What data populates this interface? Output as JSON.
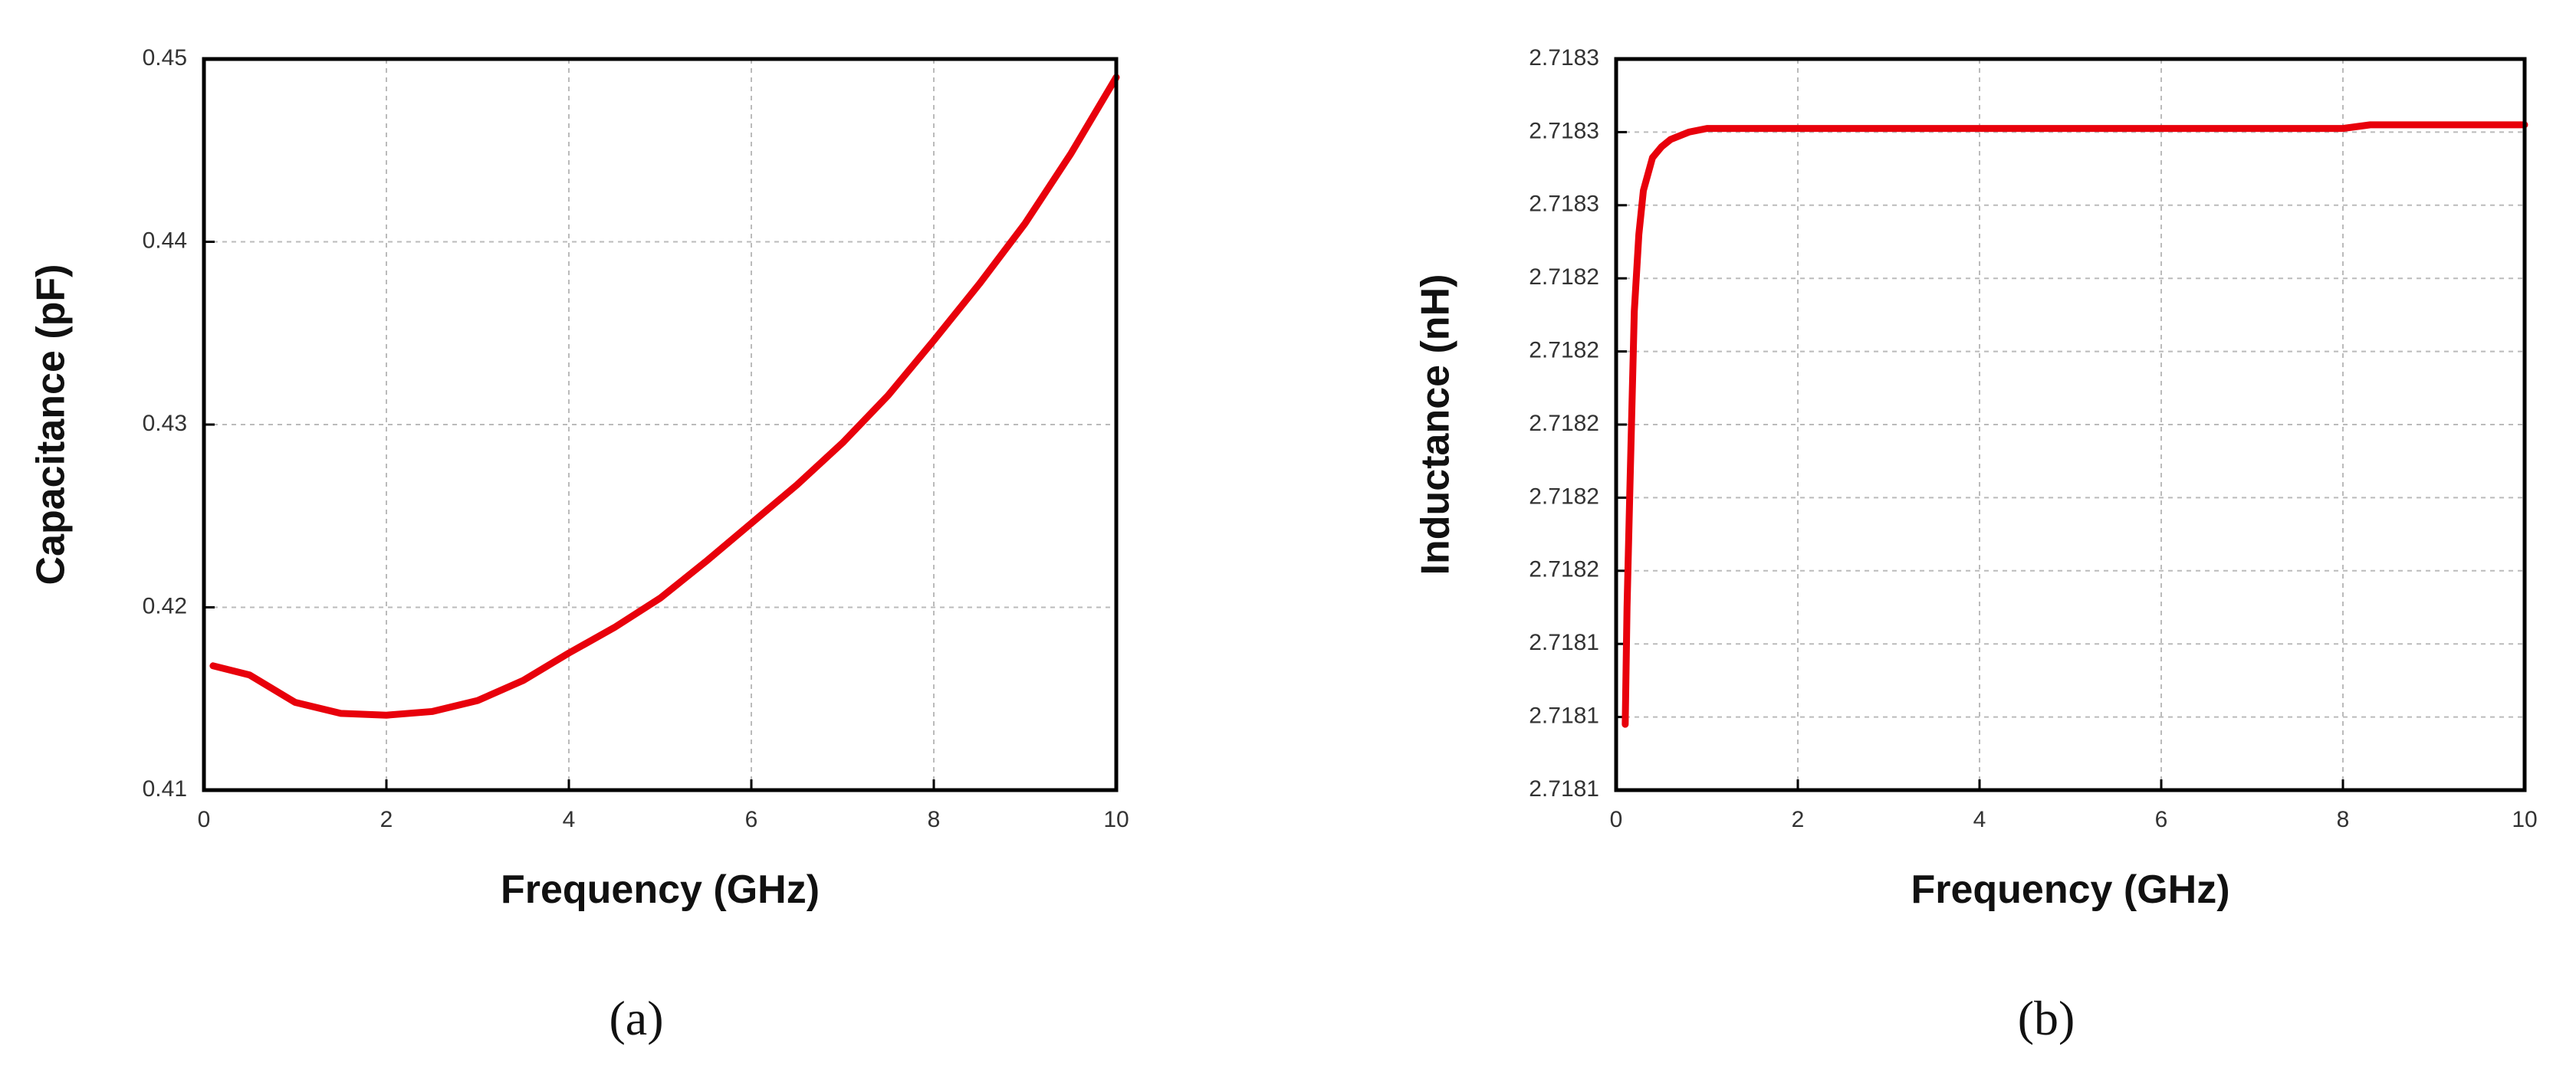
{
  "chart_data": [
    {
      "type": "line",
      "caption": "(a)",
      "xlabel": "Frequency (GHz)",
      "ylabel": "Capacitance (pF)",
      "xlim": [
        0,
        10
      ],
      "xticks": [
        0,
        2,
        4,
        6,
        8,
        10
      ],
      "ylim": [
        0.41,
        0.45
      ],
      "yticks": [
        0.41,
        0.42,
        0.43,
        0.44,
        0.45
      ],
      "grid": true,
      "series": [
        {
          "color": "#e8000b",
          "x": [
            0.1,
            0.5,
            1,
            1.5,
            2,
            2.5,
            3,
            3.5,
            4,
            4.5,
            5,
            5.5,
            6,
            6.5,
            7,
            7.5,
            8,
            8.5,
            9,
            9.5,
            10
          ],
          "values": [
            0.4168,
            0.4163,
            0.4148,
            0.4142,
            0.4141,
            0.4143,
            0.4149,
            0.416,
            0.4175,
            0.4189,
            0.4205,
            0.4225,
            0.4246,
            0.4267,
            0.429,
            0.4316,
            0.4346,
            0.4377,
            0.441,
            0.4448,
            0.449
          ]
        }
      ]
    },
    {
      "type": "line",
      "caption": "(b)",
      "xlabel": "Frequency (GHz)",
      "ylabel": "Inductance (nH)",
      "xlim": [
        0,
        10
      ],
      "xticks": [
        0,
        2,
        4,
        6,
        8,
        10
      ],
      "ylim": [
        2.7181,
        2.7183
      ],
      "yticks": [
        {
          "value": 2.7181,
          "label": "2.7181"
        },
        {
          "value": 2.71812,
          "label": "2.7181"
        },
        {
          "value": 2.71814,
          "label": "2.7181"
        },
        {
          "value": 2.71816,
          "label": "2.7182"
        },
        {
          "value": 2.71818,
          "label": "2.7182"
        },
        {
          "value": 2.7182,
          "label": "2.7182"
        },
        {
          "value": 2.71822,
          "label": "2.7182"
        },
        {
          "value": 2.71824,
          "label": "2.7182"
        },
        {
          "value": 2.71826,
          "label": "2.7183"
        },
        {
          "value": 2.71828,
          "label": "2.7183"
        },
        {
          "value": 2.7183,
          "label": "2.7183"
        }
      ],
      "grid": true,
      "series": [
        {
          "color": "#e8000b",
          "x": [
            0.1,
            0.12,
            0.15,
            0.2,
            0.25,
            0.3,
            0.4,
            0.5,
            0.6,
            0.8,
            1,
            1.5,
            2,
            4,
            6,
            8,
            8.3,
            10
          ],
          "values": [
            2.718118,
            2.71815,
            2.718181,
            2.718231,
            2.718252,
            2.718264,
            2.718273,
            2.718276,
            2.718278,
            2.71828,
            2.718281,
            2.718281,
            2.718281,
            2.718281,
            2.718281,
            2.718281,
            2.718282,
            2.718282
          ]
        }
      ]
    }
  ]
}
